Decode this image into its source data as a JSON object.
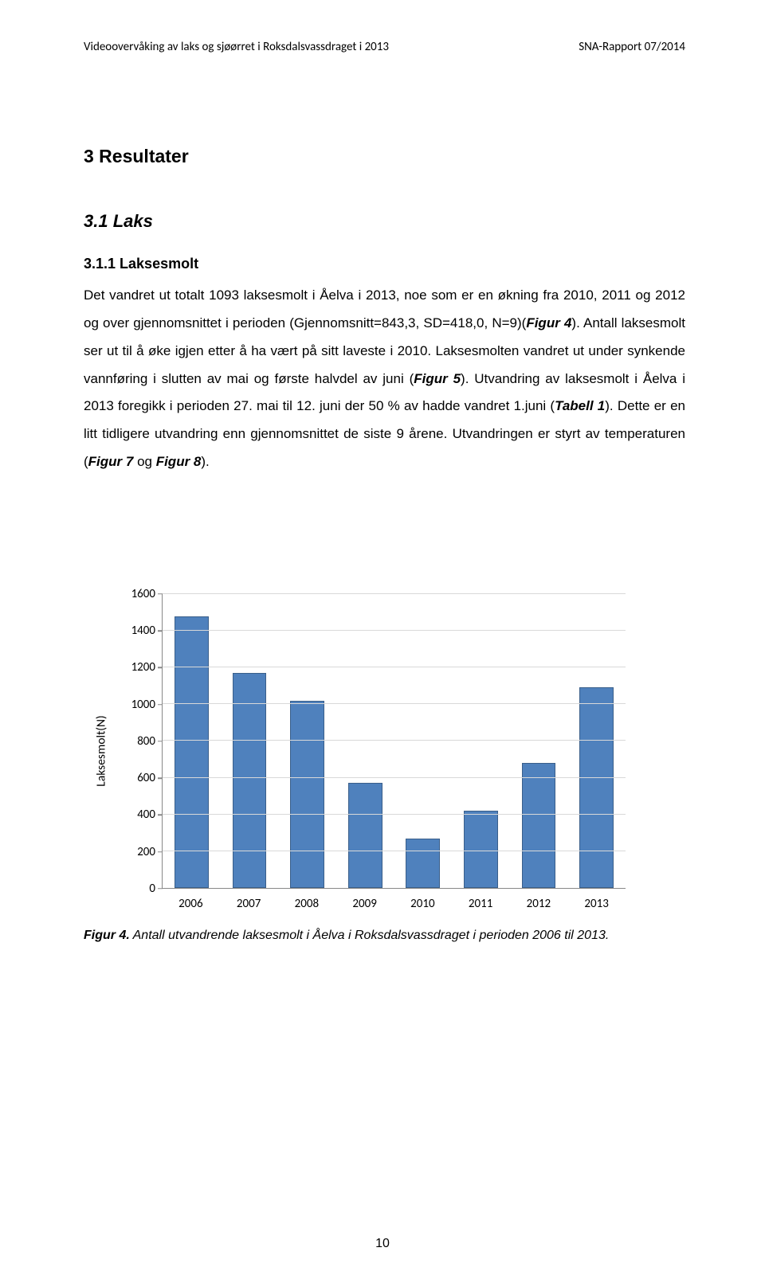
{
  "header": {
    "left": "Videoovervåking av laks og sjøørret i Roksdalsvassdraget i 2013",
    "right": "SNA-Rapport 07/2014"
  },
  "section": {
    "h1": "3 Resultater",
    "h2": "3.1 Laks",
    "h3": "3.1.1 Laksesmolt"
  },
  "body": {
    "p1a": "Det vandret ut totalt 1093 laksesmolt i Åelva i 2013, noe som er en økning fra 2010, 2011 og 2012 og over gjennomsnittet i perioden (Gjennomsnitt=843,3, SD=418,0, N=9)(",
    "fig4": "Figur 4",
    "p1b": "). Antall laksesmolt ser ut til å øke igjen etter å ha vært på sitt laveste i 2010. Laksesmolten vandret ut under synkende vannføring i slutten av mai og første halvdel av juni (",
    "fig5": "Figur 5",
    "p1c": "). Utvandring av laksesmolt i Åelva i 2013 foregikk i perioden 27. mai til 12. juni der 50 % av hadde vandret 1.juni (",
    "tab1": "Tabell 1",
    "p1d": "). Dette er en litt tidligere utvandring enn gjennomsnittet de siste 9 årene. Utvandringen er styrt av temperaturen (",
    "fig7": "Figur 7",
    "p1e": " og ",
    "fig8": "Figur 8",
    "p1f": ")."
  },
  "chart": {
    "type": "bar",
    "yaxis_title": "Laksesmolt(N)",
    "ylim": [
      0,
      1600
    ],
    "ytick_step": 200,
    "yticks": [
      0,
      200,
      400,
      600,
      800,
      1000,
      1200,
      1400,
      1600
    ],
    "categories": [
      "2006",
      "2007",
      "2008",
      "2009",
      "2010",
      "2011",
      "2012",
      "2013"
    ],
    "values": [
      1480,
      1170,
      1020,
      570,
      270,
      420,
      680,
      1093
    ],
    "bar_color": "#4f81bd",
    "bar_border_color": "#3a5f8a",
    "grid_color": "#d9d9d9",
    "axis_color": "#888888",
    "background_color": "#ffffff",
    "label_fontsize": 15,
    "bar_width_ratio": 0.59
  },
  "caption": {
    "lead": "Figur 4.",
    "text": " Antall utvandrende laksesmolt i Åelva i Roksdalsvassdraget i perioden 2006 til 2013."
  },
  "page_number": "10"
}
